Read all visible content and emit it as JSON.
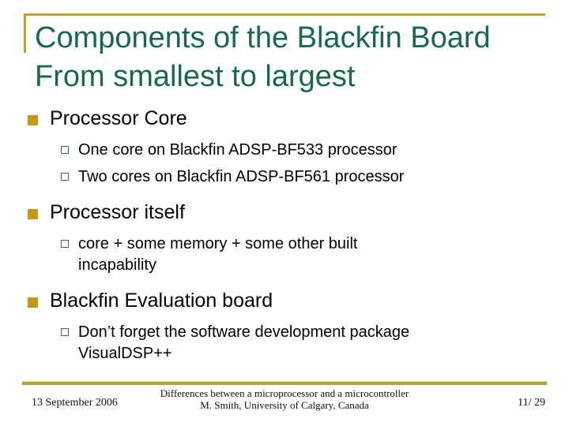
{
  "slide": {
    "title": {
      "line1": "Components of the Blackfin Board",
      "line2": "From smallest to largest"
    },
    "sections": [
      {
        "heading": "Processor Core",
        "subs": [
          {
            "lines": [
              "One core on Blackfin ADSP-BF533 processor"
            ]
          },
          {
            "lines": [
              "Two cores on Blackfin ADSP-BF561 processor"
            ]
          }
        ]
      },
      {
        "heading": "Processor itself",
        "subs": [
          {
            "lines": [
              "core + some memory + some other built",
              "incapability"
            ]
          }
        ]
      },
      {
        "heading": "Blackfin Evaluation board",
        "subs": [
          {
            "lines": [
              "Don’t forget the software development package",
              "VisualDSP++"
            ]
          }
        ]
      }
    ],
    "footer": {
      "date": "13 September 2006",
      "center_line1": "Differences between a microprocessor and a microcontroller",
      "center_line2": "M. Smith, University of Calgary, Canada",
      "page": "11/ 29"
    },
    "colors": {
      "accent_gold_rule": "#BDA433",
      "bullet_gold": "#C7980F",
      "bullet_green_outline": "#3E6B4C",
      "title_green": "#17694E"
    }
  }
}
